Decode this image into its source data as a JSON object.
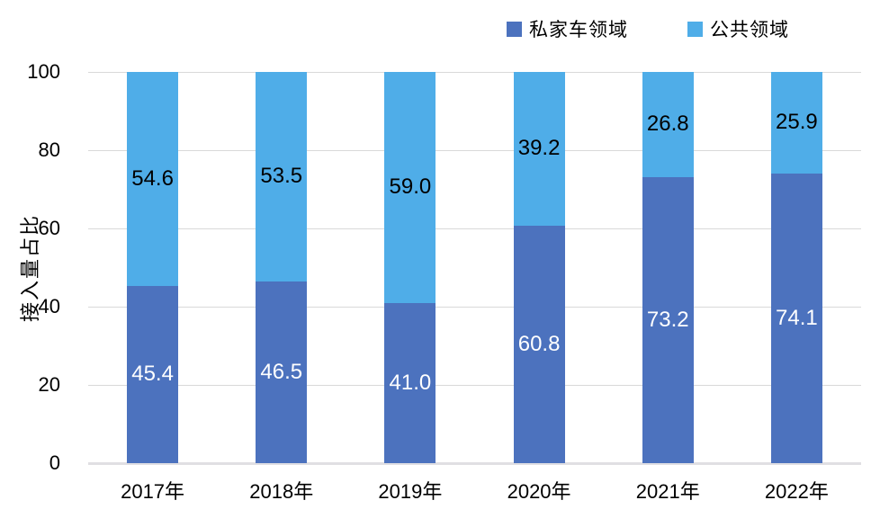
{
  "chart_data": {
    "type": "bar",
    "stacked": true,
    "orientation": "vertical",
    "categories": [
      "2017年",
      "2018年",
      "2019年",
      "2020年",
      "2021年",
      "2022年"
    ],
    "series": [
      {
        "key": "private-cars",
        "name": "私家车领域",
        "color": "#4C72BE",
        "label_color": "#FFFFFF",
        "values": [
          45.4,
          46.5,
          41.0,
          60.8,
          73.2,
          74.1
        ],
        "value_labels": [
          "45.4",
          "46.5",
          "41.0",
          "60.8",
          "73.2",
          "74.1"
        ]
      },
      {
        "key": "public-sector",
        "name": "公共领域",
        "color": "#4FADE8",
        "label_color": "#000000",
        "values": [
          54.6,
          53.5,
          59.0,
          39.2,
          26.8,
          25.9
        ],
        "value_labels": [
          "54.6",
          "53.5",
          "59.0",
          "39.2",
          "26.8",
          "25.9"
        ]
      }
    ],
    "title": "",
    "xlabel": "",
    "ylabel": "接入量占比",
    "ylim": [
      0,
      100
    ],
    "yticks": [
      0,
      20,
      40,
      60,
      80,
      100
    ],
    "grid": true,
    "gridline_color": "#D9D9D9",
    "legend_position": "top-right"
  }
}
